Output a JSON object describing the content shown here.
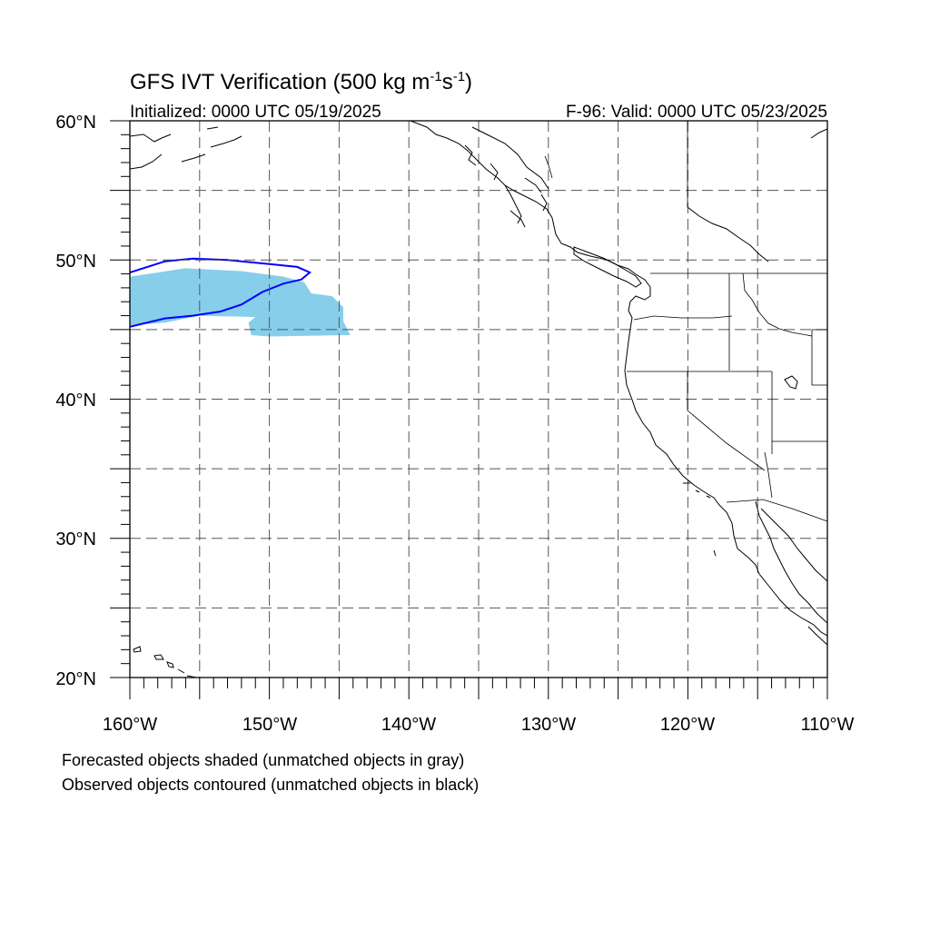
{
  "title": {
    "prefix": "GFS IVT Verification (500 kg m",
    "exp1": "-1",
    "mid": "s",
    "exp2": "-1",
    "suffix": ")"
  },
  "initialized": "Initialized: 0000 UTC 05/19/2025",
  "valid": "F-96: Valid: 0000 UTC 05/23/2025",
  "lat_labels": [
    "60°N",
    "50°N",
    "40°N",
    "30°N",
    "20°N"
  ],
  "lon_labels": [
    "160°W",
    "150°W",
    "140°W",
    "130°W",
    "120°W",
    "110°W"
  ],
  "captions": {
    "forecast": "Forecasted objects shaded (unmatched objects in gray)",
    "observed": "Observed objects contoured (unmatched objects in black)"
  },
  "colors": {
    "forecast_fill": "#87ceeb",
    "observed_contour": "#0000ff",
    "grid": "#555555",
    "coast": "#000000"
  },
  "map": {
    "lon_range": [
      -160,
      -110
    ],
    "lat_range": [
      20,
      60
    ],
    "grid_lon_step": 5,
    "grid_lat_step": 5
  },
  "forecast_object": {
    "points": [
      [
        -160,
        48.8
      ],
      [
        -156,
        49.4
      ],
      [
        -152,
        49.2
      ],
      [
        -149,
        48.8
      ],
      [
        -147.5,
        48.4
      ],
      [
        -147,
        47.6
      ],
      [
        -145.5,
        47.4
      ],
      [
        -144.7,
        46.6
      ],
      [
        -144.7,
        45.6
      ],
      [
        -144.2,
        44.6
      ],
      [
        -150,
        44.5
      ],
      [
        -151.3,
        44.6
      ],
      [
        -151.5,
        45.5
      ],
      [
        -151,
        45.9
      ],
      [
        -155,
        46.0
      ],
      [
        -157.5,
        45.5
      ],
      [
        -160,
        45.3
      ]
    ]
  },
  "observed_object": {
    "points": [
      [
        -160,
        49.1
      ],
      [
        -157.5,
        49.9
      ],
      [
        -155.5,
        50.1
      ],
      [
        -153,
        50.0
      ],
      [
        -150,
        49.7
      ],
      [
        -148,
        49.5
      ],
      [
        -147.1,
        49.1
      ],
      [
        -147.7,
        48.6
      ],
      [
        -149,
        48.3
      ],
      [
        -150.5,
        47.7
      ],
      [
        -152,
        46.8
      ],
      [
        -153.5,
        46.3
      ],
      [
        -155.5,
        46.0
      ],
      [
        -157.5,
        45.8
      ],
      [
        -160,
        45.2
      ]
    ]
  }
}
